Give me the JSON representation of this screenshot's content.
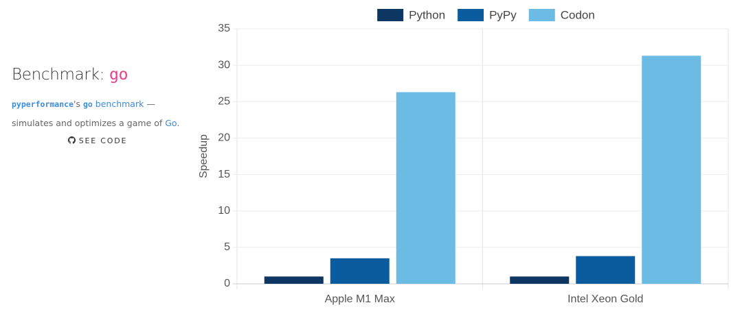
{
  "sidebar": {
    "title_prefix": "Benchmark: ",
    "title_name": "go",
    "desc_code1": "pyperformance",
    "desc_text1": "'s ",
    "desc_code2": "go",
    "desc_link1": " benchmark",
    "desc_text2": " —",
    "desc_text3": "simulates and optimizes a game of ",
    "desc_link2": "Go",
    "desc_text4": ".",
    "see_code": "SEE CODE"
  },
  "chart_data": {
    "type": "bar",
    "y_label": "Speedup",
    "categories": [
      "Apple M1 Max",
      "Intel Xeon Gold"
    ],
    "series": [
      {
        "name": "Python",
        "color": "#0e3662",
        "values": [
          1,
          1
        ]
      },
      {
        "name": "PyPy",
        "color": "#0b5c9e",
        "values": [
          3.5,
          3.8
        ]
      },
      {
        "name": "Codon",
        "color": "#6bbbe4",
        "values": [
          26.3,
          31.3
        ]
      }
    ],
    "ylim": [
      0,
      35
    ],
    "yticks": [
      0,
      5,
      10,
      15,
      20,
      25,
      30,
      35
    ],
    "grid": true,
    "legend": "top"
  }
}
